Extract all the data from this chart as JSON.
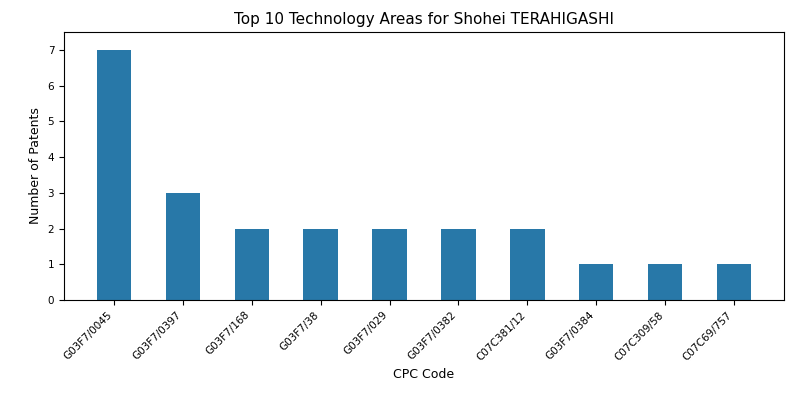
{
  "categories": [
    "G03F7/0045",
    "G03F7/0397",
    "G03F7/168",
    "G03F7/38",
    "G03F7/029",
    "G03F7/0382",
    "C07C381/12",
    "G03F7/0384",
    "C07C309/58",
    "C07C69/757"
  ],
  "values": [
    7,
    3,
    2,
    2,
    2,
    2,
    2,
    1,
    1,
    1
  ],
  "bar_color": "#2878a8",
  "title": "Top 10 Technology Areas for Shohei TERAHIGASHI",
  "xlabel": "CPC Code",
  "ylabel": "Number of Patents",
  "ylim": [
    0,
    7.5
  ],
  "yticks": [
    0,
    1,
    2,
    3,
    4,
    5,
    6,
    7
  ],
  "title_fontsize": 11,
  "axis_label_fontsize": 9,
  "tick_fontsize": 7.5,
  "bar_width": 0.5
}
